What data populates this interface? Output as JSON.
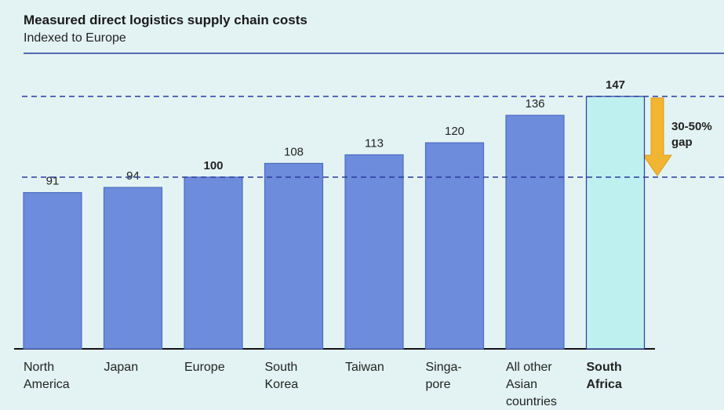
{
  "chart_data": {
    "type": "bar",
    "title": "Measured direct logistics supply chain costs",
    "subtitle": "Indexed to Europe",
    "categories": [
      "North\nAmerica",
      "Japan",
      "Europe",
      "South\nKorea",
      "Taiwan",
      "Singa-\npore",
      "All other\nAsian\ncountries",
      "South\nAfrica"
    ],
    "values": [
      91,
      94,
      100,
      108,
      113,
      120,
      136,
      147
    ],
    "colors": [
      "#6d8cdc",
      "#6d8cdc",
      "#6d8cdc",
      "#6d8cdc",
      "#6d8cdc",
      "#6d8cdc",
      "#6d8cdc",
      "#bff0f0"
    ],
    "annotation": "30-50%\ngap"
  }
}
